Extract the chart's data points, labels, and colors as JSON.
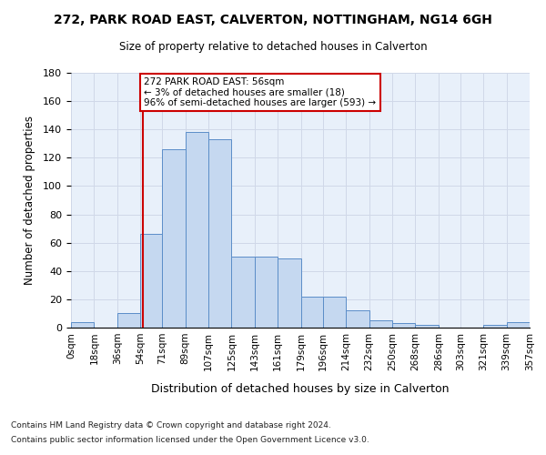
{
  "title1": "272, PARK ROAD EAST, CALVERTON, NOTTINGHAM, NG14 6GH",
  "title2": "Size of property relative to detached houses in Calverton",
  "xlabel": "Distribution of detached houses by size in Calverton",
  "ylabel": "Number of detached properties",
  "footnote1": "Contains HM Land Registry data © Crown copyright and database right 2024.",
  "footnote2": "Contains public sector information licensed under the Open Government Licence v3.0.",
  "annotation_title": "272 PARK ROAD EAST: 56sqm",
  "annotation_line1": "← 3% of detached houses are smaller (18)",
  "annotation_line2": "96% of semi-detached houses are larger (593) →",
  "subject_value": 56,
  "bar_bins": [
    0,
    18,
    36,
    54,
    71,
    89,
    107,
    125,
    143,
    161,
    179,
    196,
    214,
    232,
    250,
    268,
    286,
    303,
    321,
    339,
    357
  ],
  "bar_heights": [
    4,
    0,
    10,
    66,
    126,
    138,
    133,
    50,
    50,
    49,
    22,
    22,
    12,
    5,
    3,
    2,
    0,
    0,
    2,
    4
  ],
  "bar_labels": [
    "0sqm",
    "18sqm",
    "36sqm",
    "54sqm",
    "71sqm",
    "89sqm",
    "107sqm",
    "125sqm",
    "143sqm",
    "161sqm",
    "179sqm",
    "196sqm",
    "214sqm",
    "232sqm",
    "250sqm",
    "268sqm",
    "286sqm",
    "303sqm",
    "321sqm",
    "339sqm",
    "357sqm"
  ],
  "bar_color": "#c5d8f0",
  "bar_edgecolor": "#5b8dc8",
  "redline_color": "#cc0000",
  "annotation_box_edgecolor": "#cc0000",
  "annotation_box_facecolor": "#ffffff",
  "grid_color": "#d0d8e8",
  "bg_color": "#e8f0fa",
  "ylim": [
    0,
    180
  ],
  "yticks": [
    0,
    20,
    40,
    60,
    80,
    100,
    120,
    140,
    160,
    180
  ],
  "figsize": [
    6.0,
    5.0
  ],
  "dpi": 100
}
